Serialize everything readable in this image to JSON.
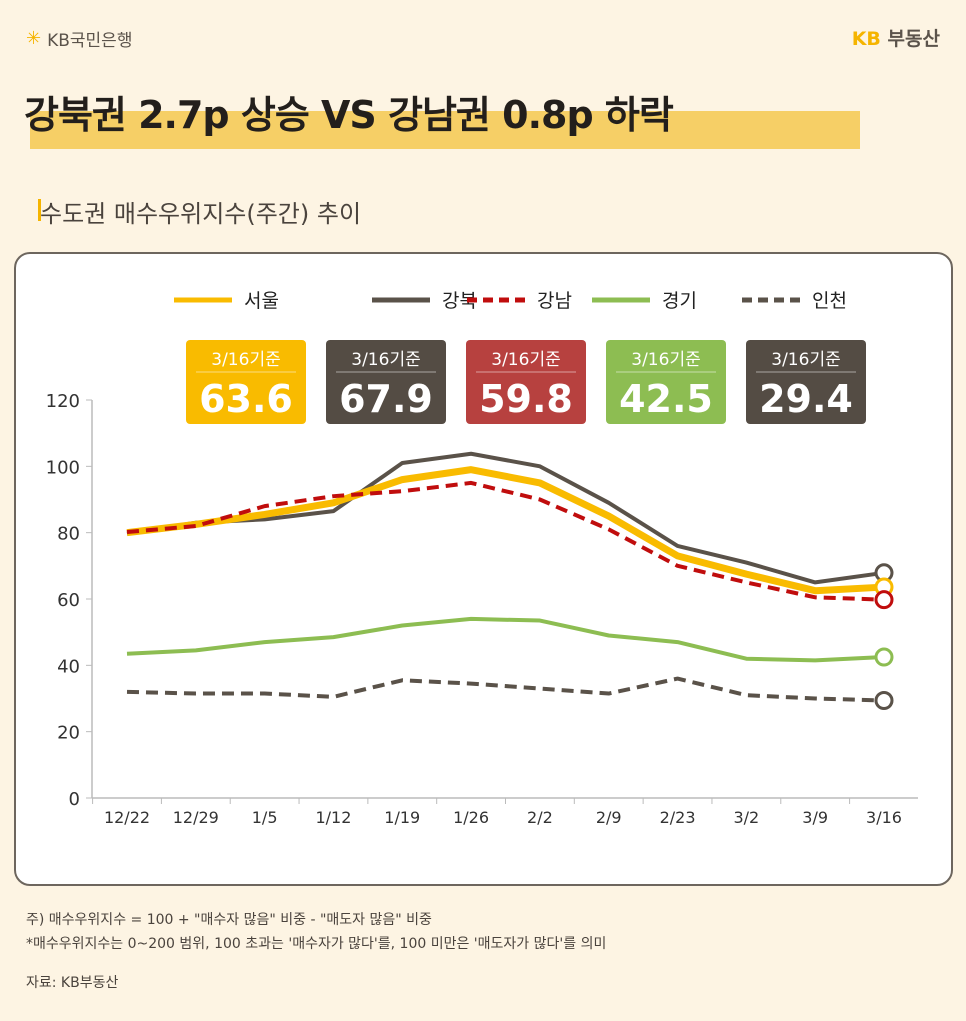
{
  "header": {
    "bank_logo": "KB국민은행",
    "brand_logo_kb": "KB",
    "brand_logo_text": "부동산"
  },
  "headline": "강북권 2.7p 상승 VS 강남권 0.8p 하락",
  "subtitle": "수도권 매수우위지수(주간) 추이",
  "chart_data": {
    "type": "line",
    "categories": [
      "12/22",
      "12/29",
      "1/5",
      "1/12",
      "1/19",
      "1/26",
      "2/2",
      "2/9",
      "2/23",
      "3/2",
      "3/9",
      "3/16"
    ],
    "ylim": [
      0,
      120
    ],
    "yticks": [
      "0",
      "20",
      "40",
      "60",
      "80",
      "100",
      "120"
    ],
    "grid": false,
    "legend_placement": "top",
    "series": [
      {
        "name": "서울",
        "color": "#f9bb00",
        "dash": false,
        "values": [
          80,
          82.5,
          85.5,
          89,
          96,
          99,
          95,
          85,
          73,
          67.5,
          62.5,
          63.6
        ]
      },
      {
        "name": "강북",
        "color": "#5a5249",
        "dash": false,
        "values": [
          79.7,
          83,
          84,
          86.5,
          101,
          103.8,
          100,
          89,
          76,
          71,
          65,
          67.9
        ]
      },
      {
        "name": "강남",
        "color": "#c00d0d",
        "dash": true,
        "values": [
          80.2,
          82,
          88,
          91,
          92.5,
          95,
          90,
          81,
          70,
          65,
          60.5,
          59.8
        ]
      },
      {
        "name": "경기",
        "color": "#8dbd52",
        "dash": false,
        "values": [
          43.5,
          44.5,
          47,
          48.5,
          52,
          54,
          53.5,
          49,
          47,
          42,
          41.5,
          42.5
        ]
      },
      {
        "name": "인천",
        "color": "#5a5249",
        "dash": true,
        "values": [
          32,
          31.5,
          31.5,
          30.5,
          35.5,
          34.5,
          33,
          31.5,
          36,
          31,
          30,
          29.4
        ]
      }
    ],
    "callouts": [
      {
        "label": "3/16기준",
        "value": "63.6",
        "bg": "#f9bb00"
      },
      {
        "label": "3/16기준",
        "value": "67.9",
        "bg": "#544c44"
      },
      {
        "label": "3/16기준",
        "value": "59.8",
        "bg": "#b7413f"
      },
      {
        "label": "3/16기준",
        "value": "42.5",
        "bg": "#8dbd52"
      },
      {
        "label": "3/16기준",
        "value": "29.4",
        "bg": "#544c44"
      }
    ]
  },
  "notes": [
    "주) 매수우위지수 = 100 + \"매수자 많음\" 비중 - \"매도자 많음\" 비중",
    "*매수우위지수는 0~200 범위, 100 초과는 '매수자가 많다'를, 100 미만은 '매도자가 많다'를 의미"
  ],
  "source": "자료: KB부동산"
}
